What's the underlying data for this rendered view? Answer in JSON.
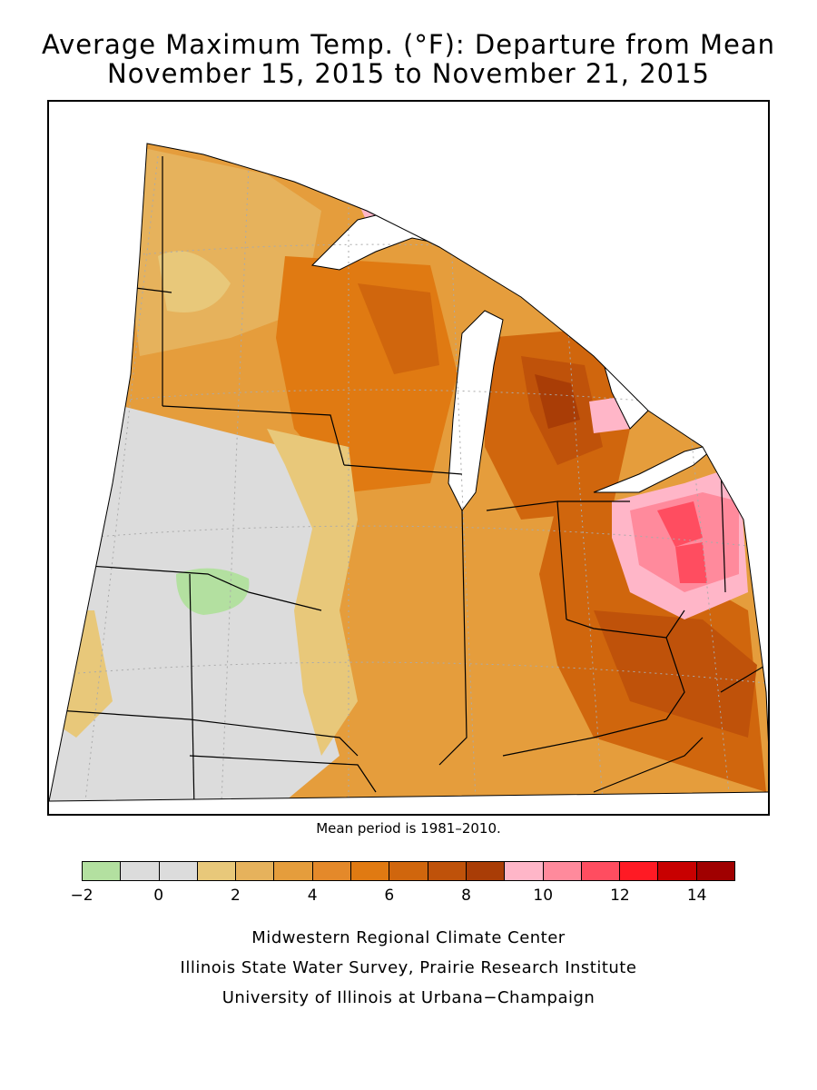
{
  "title": {
    "line1": "Average Maximum Temp. (°F): Departure from Mean",
    "line2": "November 15, 2015 to November 21, 2015"
  },
  "mean_note": "Mean period is 1981–2010.",
  "legend": {
    "colors": [
      "#b3e0a0",
      "#dcdcdc",
      "#dcdcdc",
      "#e8c87a",
      "#e6b25c",
      "#e59d3c",
      "#e4892a",
      "#e07a12",
      "#d0660d",
      "#bf520a",
      "#a93d06",
      "#ffb6c8",
      "#ff8a9c",
      "#ff4d60",
      "#ff1a24",
      "#c80000",
      "#a00000"
    ],
    "tick_labels": [
      "−2",
      "0",
      "2",
      "4",
      "6",
      "8",
      "10",
      "12",
      "14"
    ]
  },
  "credits": [
    "Midwestern Regional Climate Center",
    "Illinois State Water Survey, Prairie Research Institute",
    "University of Illinois at Urbana−Champaign"
  ]
}
